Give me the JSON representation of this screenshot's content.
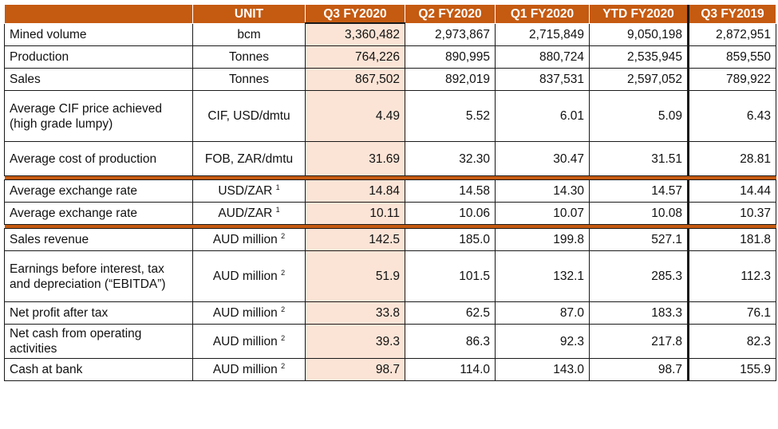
{
  "headers": [
    "",
    "UNIT",
    "Q3 FY2020",
    "Q2 FY2020",
    "Q1 FY2020",
    "YTD FY2020",
    "Q3 FY2019"
  ],
  "rows": [
    {
      "label": "Mined volume",
      "unit": "bcm",
      "sup": "",
      "values": [
        "3,360,482",
        "2,973,867",
        "2,715,849",
        "9,050,198",
        "2,872,951"
      ]
    },
    {
      "label": "Production",
      "unit": "Tonnes",
      "sup": "",
      "values": [
        "764,226",
        "890,995",
        "880,724",
        "2,535,945",
        "859,550"
      ]
    },
    {
      "label": "Sales",
      "unit": "Tonnes",
      "sup": "",
      "values": [
        "867,502",
        "892,019",
        "837,531",
        "2,597,052",
        "789,922"
      ]
    },
    {
      "label": "Average CIF price achieved (high grade lumpy)",
      "unit": "CIF, USD/dmtu",
      "sup": "",
      "values": [
        "4.49",
        "5.52",
        "6.01",
        "5.09",
        "6.43"
      ]
    },
    {
      "label": "Average cost of production",
      "unit": "FOB, ZAR/dmtu",
      "sup": "",
      "values": [
        "31.69",
        "32.30",
        "30.47",
        "31.51",
        "28.81"
      ]
    },
    {
      "label": "Average exchange rate",
      "unit": "USD/ZAR",
      "sup": "1",
      "values": [
        "14.84",
        "14.58",
        "14.30",
        "14.57",
        "14.44"
      ]
    },
    {
      "label": "Average exchange rate",
      "unit": "AUD/ZAR",
      "sup": "1",
      "values": [
        "10.11",
        "10.06",
        "10.07",
        "10.08",
        "10.37"
      ]
    },
    {
      "label": "Sales revenue",
      "unit": "AUD million",
      "sup": "2",
      "values": [
        "142.5",
        "185.0",
        "199.8",
        "527.1",
        "181.8"
      ]
    },
    {
      "label": "Earnings before interest, tax and depreciation (“EBITDA”)",
      "unit": "AUD million",
      "sup": "2",
      "values": [
        "51.9",
        "101.5",
        "132.1",
        "285.3",
        "112.3"
      ]
    },
    {
      "label": "Net profit after tax",
      "unit": "AUD million",
      "sup": "2",
      "values": [
        "33.8",
        "62.5",
        "87.0",
        "183.3",
        "76.1"
      ]
    },
    {
      "label": "Net cash from operating activities",
      "unit": "AUD million",
      "sup": "2",
      "values": [
        "39.3",
        "86.3",
        "92.3",
        "217.8",
        "82.3"
      ]
    },
    {
      "label": "Cash at bank",
      "unit": "AUD million",
      "sup": "2",
      "values": [
        "98.7",
        "114.0",
        "143.0",
        "98.7",
        "155.9"
      ]
    }
  ],
  "colors": {
    "header_bg": "#c55a11",
    "highlight": "#fbe4d6",
    "header_text": "#ffffff"
  }
}
